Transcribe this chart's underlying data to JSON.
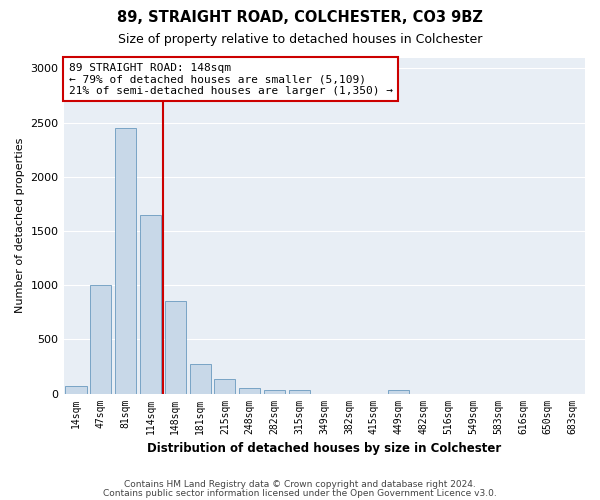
{
  "title": "89, STRAIGHT ROAD, COLCHESTER, CO3 9BZ",
  "subtitle": "Size of property relative to detached houses in Colchester",
  "xlabel": "Distribution of detached houses by size in Colchester",
  "ylabel": "Number of detached properties",
  "categories": [
    "14sqm",
    "47sqm",
    "81sqm",
    "114sqm",
    "148sqm",
    "181sqm",
    "215sqm",
    "248sqm",
    "282sqm",
    "315sqm",
    "349sqm",
    "382sqm",
    "415sqm",
    "449sqm",
    "482sqm",
    "516sqm",
    "549sqm",
    "583sqm",
    "616sqm",
    "650sqm",
    "683sqm"
  ],
  "values": [
    70,
    1000,
    2450,
    1650,
    850,
    270,
    130,
    50,
    30,
    30,
    0,
    0,
    0,
    30,
    0,
    0,
    0,
    0,
    0,
    0,
    0
  ],
  "bar_color": "#c8d8e8",
  "bar_edge_color": "#6a9abf",
  "vline_color": "#cc0000",
  "vline_x": 3.5,
  "annotation_text": "89 STRAIGHT ROAD: 148sqm\n← 79% of detached houses are smaller (5,109)\n21% of semi-detached houses are larger (1,350) →",
  "annotation_box_color": "#ffffff",
  "annotation_box_edge": "#cc0000",
  "ylim": [
    0,
    3100
  ],
  "yticks": [
    0,
    500,
    1000,
    1500,
    2000,
    2500,
    3000
  ],
  "background_color": "#e8eef5",
  "footer_line1": "Contains HM Land Registry data © Crown copyright and database right 2024.",
  "footer_line2": "Contains public sector information licensed under the Open Government Licence v3.0."
}
